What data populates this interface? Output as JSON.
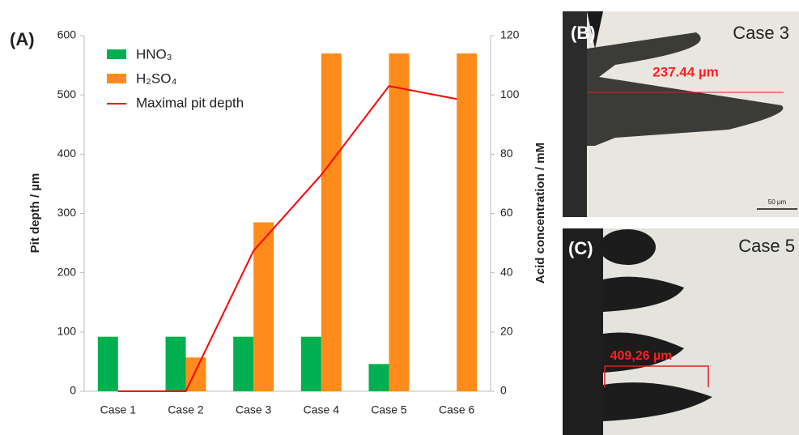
{
  "chart_data": {
    "type": "bar_line",
    "panel_label": "(A)",
    "categories": [
      "Case 1",
      "Case 2",
      "Case 3",
      "Case 4",
      "Case 5",
      "Case 6"
    ],
    "ylabel": "Pit depth / µm",
    "y2label": "Acid concentration / mM",
    "ylim": [
      0,
      600
    ],
    "yticks": [
      0,
      100,
      200,
      300,
      400,
      500,
      600
    ],
    "y2lim": [
      0,
      120
    ],
    "y2ticks": [
      0,
      20,
      40,
      60,
      80,
      100,
      120
    ],
    "legend": "upper left",
    "series": [
      {
        "name": "HNO₃",
        "type": "bar",
        "axis": "y2",
        "color": "#00b050",
        "values": [
          18.4,
          18.4,
          18.4,
          18.4,
          9.2,
          0
        ]
      },
      {
        "name": "H₂SO₄",
        "type": "bar",
        "axis": "y2",
        "color": "#ff8c1a",
        "values": [
          0,
          11.4,
          57,
          114,
          114,
          114
        ]
      },
      {
        "name": "Maximal pit depth",
        "type": "line",
        "color": "#ff0000",
        "values": [
          0,
          0,
          237,
          365,
          515,
          493
        ]
      }
    ]
  },
  "images": [
    {
      "panel_label": "(B)",
      "caption": "Case 3",
      "measurement": "237.44 µm",
      "scale_bar": "50 µm"
    },
    {
      "panel_label": "(C)",
      "caption": "Case 5",
      "measurement": "409,26 µm"
    }
  ]
}
